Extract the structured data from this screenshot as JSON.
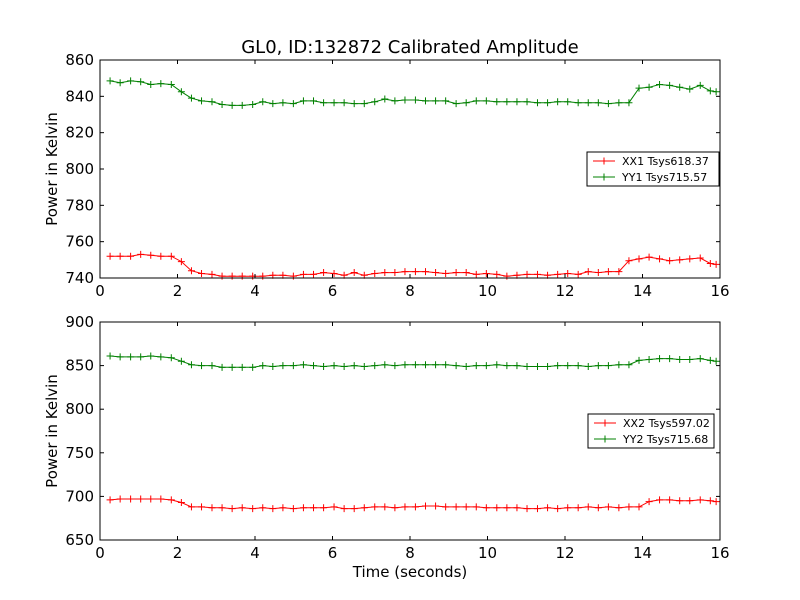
{
  "title": "GL0, ID:132872 Calibrated Amplitude",
  "chart_data": [
    {
      "type": "line",
      "ylabel": "Power in Kelvin",
      "xlabel": "",
      "xlim": [
        0,
        16
      ],
      "ylim": [
        740,
        860
      ],
      "xticks": [
        "0",
        "2",
        "4",
        "6",
        "8",
        "10",
        "12",
        "14",
        "16"
      ],
      "yticks": [
        "740",
        "760",
        "780",
        "800",
        "820",
        "840",
        "860"
      ],
      "legend_position": "center-right",
      "grid": false,
      "x": [
        0.26,
        0.52,
        0.79,
        1.05,
        1.31,
        1.57,
        1.84,
        2.1,
        2.36,
        2.62,
        2.89,
        3.15,
        3.41,
        3.67,
        3.94,
        4.2,
        4.46,
        4.72,
        4.99,
        5.25,
        5.51,
        5.77,
        6.04,
        6.3,
        6.56,
        6.82,
        7.09,
        7.35,
        7.61,
        7.87,
        8.14,
        8.4,
        8.66,
        8.92,
        9.19,
        9.45,
        9.71,
        9.97,
        10.24,
        10.5,
        10.76,
        11.02,
        11.29,
        11.55,
        11.81,
        12.07,
        12.34,
        12.6,
        12.86,
        13.12,
        13.39,
        13.65,
        13.91,
        14.17,
        14.44,
        14.7,
        14.96,
        15.22,
        15.49,
        15.75,
        15.9
      ],
      "series": [
        {
          "name": "XX1 Tsys618.37",
          "color": "#ff0000",
          "values": [
            752,
            752,
            752,
            753,
            752.5,
            752,
            752,
            749,
            744,
            742.5,
            742,
            741,
            741,
            741,
            741,
            741,
            741.5,
            741.5,
            741,
            742,
            742,
            743,
            742.5,
            741.5,
            743,
            741.5,
            742.5,
            743,
            743,
            743.5,
            743.5,
            743.5,
            743,
            742.5,
            743,
            743,
            742,
            742.5,
            742,
            741,
            741.5,
            742,
            742,
            741.5,
            742,
            742.5,
            742,
            743.5,
            743,
            743.5,
            743.5,
            749.5,
            750.5,
            751.5,
            750.5,
            749.5,
            750,
            750.5,
            751,
            748,
            747.5
          ]
        },
        {
          "name": "YY1 Tsys715.57",
          "color": "#008000",
          "values": [
            848.5,
            847.5,
            848.5,
            848,
            846.5,
            847,
            846.5,
            842.5,
            839,
            837.5,
            837,
            835.5,
            835,
            835,
            835.5,
            837,
            836,
            836.5,
            836,
            837.5,
            837.5,
            836.5,
            836.5,
            836.5,
            836,
            836,
            837,
            838.5,
            837.5,
            838,
            838,
            837.5,
            837.5,
            837.5,
            836,
            836.5,
            837.5,
            837.5,
            837,
            837,
            837,
            837,
            836.5,
            836.5,
            837,
            837,
            836.5,
            836.5,
            836.5,
            836,
            836.5,
            836.5,
            844.5,
            845,
            846.5,
            846,
            845,
            844,
            846,
            843,
            842.5
          ]
        }
      ]
    },
    {
      "type": "line",
      "ylabel": "Power in Kelvin",
      "xlabel": "Time (seconds)",
      "xlim": [
        0,
        16
      ],
      "ylim": [
        650,
        900
      ],
      "xticks": [
        "0",
        "2",
        "4",
        "6",
        "8",
        "10",
        "12",
        "14",
        "16"
      ],
      "yticks": [
        "650",
        "700",
        "750",
        "800",
        "850",
        "900"
      ],
      "legend_position": "center-right",
      "grid": false,
      "x": [
        0.26,
        0.52,
        0.79,
        1.05,
        1.31,
        1.57,
        1.84,
        2.1,
        2.36,
        2.62,
        2.89,
        3.15,
        3.41,
        3.67,
        3.94,
        4.2,
        4.46,
        4.72,
        4.99,
        5.25,
        5.51,
        5.77,
        6.04,
        6.3,
        6.56,
        6.82,
        7.09,
        7.35,
        7.61,
        7.87,
        8.14,
        8.4,
        8.66,
        8.92,
        9.19,
        9.45,
        9.71,
        9.97,
        10.24,
        10.5,
        10.76,
        11.02,
        11.29,
        11.55,
        11.81,
        12.07,
        12.34,
        12.6,
        12.86,
        13.12,
        13.39,
        13.65,
        13.91,
        14.17,
        14.44,
        14.7,
        14.96,
        15.22,
        15.49,
        15.75,
        15.9
      ],
      "series": [
        {
          "name": "XX2 Tsys597.02",
          "color": "#ff0000",
          "values": [
            696,
            697,
            697,
            697,
            697,
            697,
            696,
            693,
            688,
            688,
            687,
            687,
            686,
            687,
            686,
            687,
            686,
            687,
            686,
            687,
            687,
            687,
            688,
            686,
            686,
            687,
            688,
            688,
            687,
            688,
            688,
            689,
            689,
            688,
            688,
            688,
            688,
            687,
            687,
            687,
            687,
            686,
            686,
            687,
            686,
            687,
            687,
            688,
            687,
            688,
            687,
            688,
            688,
            694,
            696,
            696,
            695,
            695,
            696,
            695,
            694
          ]
        },
        {
          "name": "YY2 Tsys715.68",
          "color": "#008000",
          "values": [
            861,
            860,
            860,
            860,
            861,
            860,
            859,
            855,
            851,
            850,
            850,
            848,
            848,
            848,
            848,
            850,
            849,
            850,
            850,
            851,
            850,
            849,
            850,
            849,
            850,
            849,
            850,
            851,
            850,
            851,
            851,
            851,
            851,
            851,
            850,
            849,
            850,
            850,
            851,
            850,
            850,
            849,
            849,
            849,
            850,
            850,
            850,
            849,
            850,
            850,
            851,
            851,
            856,
            857,
            858,
            858,
            857,
            857,
            858,
            856,
            855
          ]
        }
      ]
    }
  ]
}
